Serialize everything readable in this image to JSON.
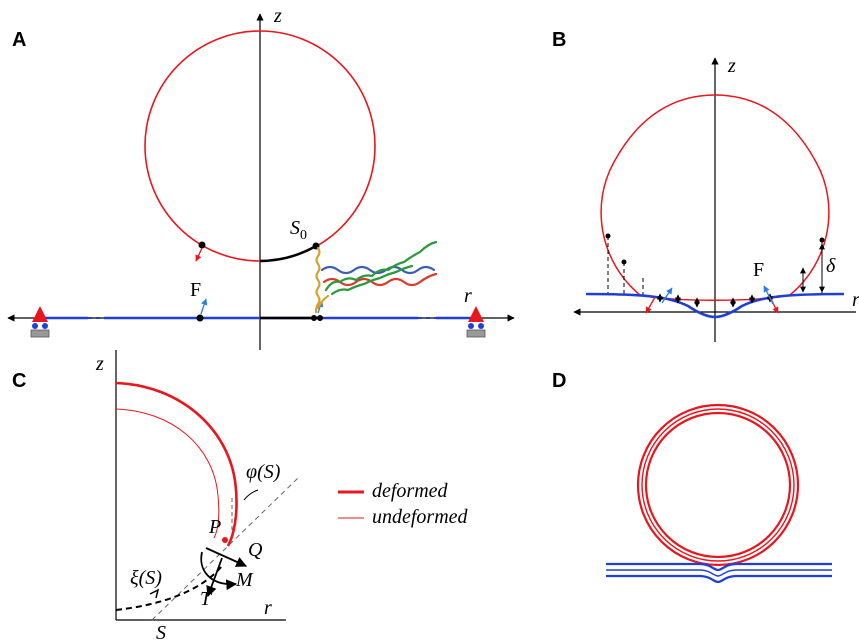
{
  "panels": {
    "a": {
      "letter": "A",
      "axis_z": "z",
      "axis_r": "r",
      "contact_point": "S",
      "contact_point_sub": "0",
      "force": "F"
    },
    "b": {
      "letter": "B",
      "axis_z": "z",
      "axis_r": "r",
      "force": "F",
      "gap": "δ"
    },
    "c": {
      "letter": "C",
      "axis_z": "z",
      "axis_r": "r",
      "angle": "φ(S)",
      "offset": "ξ(S)",
      "arclength": "S",
      "pressure": "P",
      "shear": "Q",
      "moment": "M",
      "tension": "T",
      "legend": [
        {
          "label": "deformed",
          "color": "#e8161d",
          "weight": "thick"
        },
        {
          "label": "undeformed",
          "color": "#e8161d",
          "weight": "thin"
        }
      ]
    },
    "d": {
      "letter": "D"
    }
  },
  "colors": {
    "vesicle": "#e8161d",
    "membrane": "#1f3fd6",
    "axis": "#000000",
    "pin": "#e8161d"
  }
}
